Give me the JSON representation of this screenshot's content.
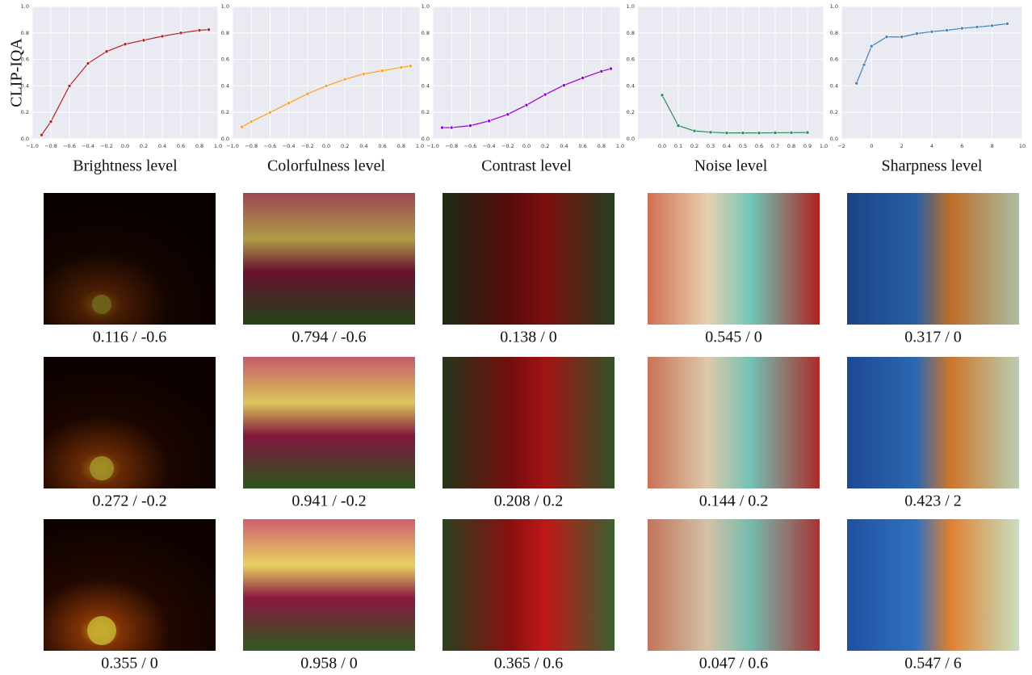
{
  "ylabel": "CLIP-IQA",
  "chart_data": [
    {
      "type": "line",
      "xlabel": "Brightness level",
      "color": "#b22222",
      "grid": true,
      "xlim": [
        -1,
        1
      ],
      "ylim": [
        0,
        1
      ],
      "xticks": [
        {
          "value": -1,
          "label": "−1.0"
        },
        {
          "value": -0.8,
          "label": "−0.8"
        },
        {
          "value": -0.6,
          "label": "−0.6"
        },
        {
          "value": -0.4,
          "label": "−0.4"
        },
        {
          "value": -0.2,
          "label": "−0.2"
        },
        {
          "value": 0,
          "label": "0.0"
        },
        0.2,
        0.4,
        0.6,
        0.8,
        {
          "value": 1,
          "label": "1.0"
        }
      ],
      "yticks": [
        {
          "value": 0,
          "label": "0.0"
        },
        0.2,
        0.4,
        0.6,
        0.8,
        {
          "value": 1,
          "label": "1.0"
        }
      ],
      "x": [
        -0.9,
        -0.8,
        -0.6,
        -0.4,
        -0.2,
        0,
        0.2,
        0.4,
        0.6,
        0.8,
        0.9
      ],
      "values": [
        0.03,
        0.13,
        0.4,
        0.57,
        0.66,
        0.715,
        0.745,
        0.775,
        0.8,
        0.82,
        0.825
      ]
    },
    {
      "type": "line",
      "xlabel": "Colorfulness level",
      "color": "#ff9f1c",
      "grid": true,
      "xlim": [
        -1,
        1
      ],
      "ylim": [
        0,
        1
      ],
      "xticks": [
        {
          "value": -1,
          "label": "−1.0"
        },
        {
          "value": -0.8,
          "label": "−0.8"
        },
        {
          "value": -0.6,
          "label": "−0.6"
        },
        {
          "value": -0.4,
          "label": "−0.4"
        },
        {
          "value": -0.2,
          "label": "−0.2"
        },
        {
          "value": 0,
          "label": "0.0"
        },
        0.2,
        0.4,
        0.6,
        0.8,
        {
          "value": 1,
          "label": "1.0"
        }
      ],
      "yticks": [
        {
          "value": 0,
          "label": "0.0"
        },
        0.2,
        0.4,
        0.6,
        0.8,
        {
          "value": 1,
          "label": "1.0"
        }
      ],
      "x": [
        -0.9,
        -0.8,
        -0.6,
        -0.4,
        -0.2,
        0,
        0.2,
        0.4,
        0.6,
        0.8,
        0.9
      ],
      "values": [
        0.09,
        0.13,
        0.2,
        0.27,
        0.34,
        0.4,
        0.45,
        0.49,
        0.515,
        0.54,
        0.55
      ]
    },
    {
      "type": "line",
      "xlabel": "Contrast level",
      "color": "#9400d3",
      "grid": true,
      "xlim": [
        -1,
        1
      ],
      "ylim": [
        0,
        1
      ],
      "xticks": [
        {
          "value": -1,
          "label": "−1.0"
        },
        {
          "value": -0.8,
          "label": "−0.8"
        },
        {
          "value": -0.6,
          "label": "−0.6"
        },
        {
          "value": -0.4,
          "label": "−0.4"
        },
        {
          "value": -0.2,
          "label": "−0.2"
        },
        {
          "value": 0,
          "label": "0.0"
        },
        0.2,
        0.4,
        0.6,
        0.8,
        {
          "value": 1,
          "label": "1.0"
        }
      ],
      "yticks": [
        {
          "value": 0,
          "label": "0.0"
        },
        0.2,
        0.4,
        0.6,
        0.8,
        {
          "value": 1,
          "label": "1.0"
        }
      ],
      "x": [
        -0.9,
        -0.8,
        -0.6,
        -0.4,
        -0.2,
        0,
        0.2,
        0.4,
        0.6,
        0.8,
        0.9
      ],
      "values": [
        0.085,
        0.085,
        0.1,
        0.135,
        0.185,
        0.255,
        0.335,
        0.405,
        0.46,
        0.51,
        0.53
      ]
    },
    {
      "type": "line",
      "xlabel": "Noise level",
      "color": "#2e8b57",
      "grid": true,
      "xlim": [
        -0.15,
        1
      ],
      "ylim": [
        0,
        1
      ],
      "xticks": [
        {
          "value": 0,
          "label": "0.0"
        },
        0.1,
        0.2,
        0.3,
        0.4,
        0.5,
        0.6,
        0.7,
        0.8,
        0.9,
        {
          "value": 1,
          "label": "1.0"
        }
      ],
      "yticks": [
        {
          "value": 0,
          "label": "0.0"
        },
        0.2,
        0.4,
        0.6,
        0.8,
        {
          "value": 1,
          "label": "1.0"
        }
      ],
      "x": [
        0,
        0.1,
        0.2,
        0.3,
        0.4,
        0.5,
        0.6,
        0.7,
        0.8,
        0.9
      ],
      "values": [
        0.33,
        0.1,
        0.06,
        0.05,
        0.045,
        0.045,
        0.045,
        0.046,
        0.047,
        0.048
      ]
    },
    {
      "type": "line",
      "xlabel": "Sharpness level",
      "color": "#4682b4",
      "grid": true,
      "xlim": [
        -2,
        10
      ],
      "ylim": [
        0,
        1
      ],
      "xticks": [
        {
          "value": -2,
          "label": "−2"
        },
        0,
        2,
        4,
        6,
        8,
        10
      ],
      "yticks": [
        {
          "value": 0,
          "label": "0.0"
        },
        0.2,
        0.4,
        0.6,
        0.8,
        {
          "value": 1,
          "label": "1.0"
        }
      ],
      "x": [
        -1,
        -0.5,
        0,
        1,
        2,
        3,
        4,
        5,
        6,
        7,
        8,
        9
      ],
      "values": [
        0.42,
        0.56,
        0.7,
        0.77,
        0.77,
        0.795,
        0.81,
        0.82,
        0.835,
        0.845,
        0.855,
        0.87
      ]
    }
  ],
  "image_grid": {
    "captions": [
      [
        "0.116 / -0.6",
        "0.794 / -0.6",
        "0.138 / 0",
        "0.545 / 0",
        "0.317 / 0"
      ],
      [
        "0.272 / -0.2",
        "0.941 / -0.2",
        "0.208 / 0.2",
        "0.144 / 0.2",
        "0.423 / 2"
      ],
      [
        "0.355 / 0",
        "0.958 / 0",
        "0.365 / 0.6",
        "0.047 / 0.6",
        "0.547 / 6"
      ]
    ]
  }
}
